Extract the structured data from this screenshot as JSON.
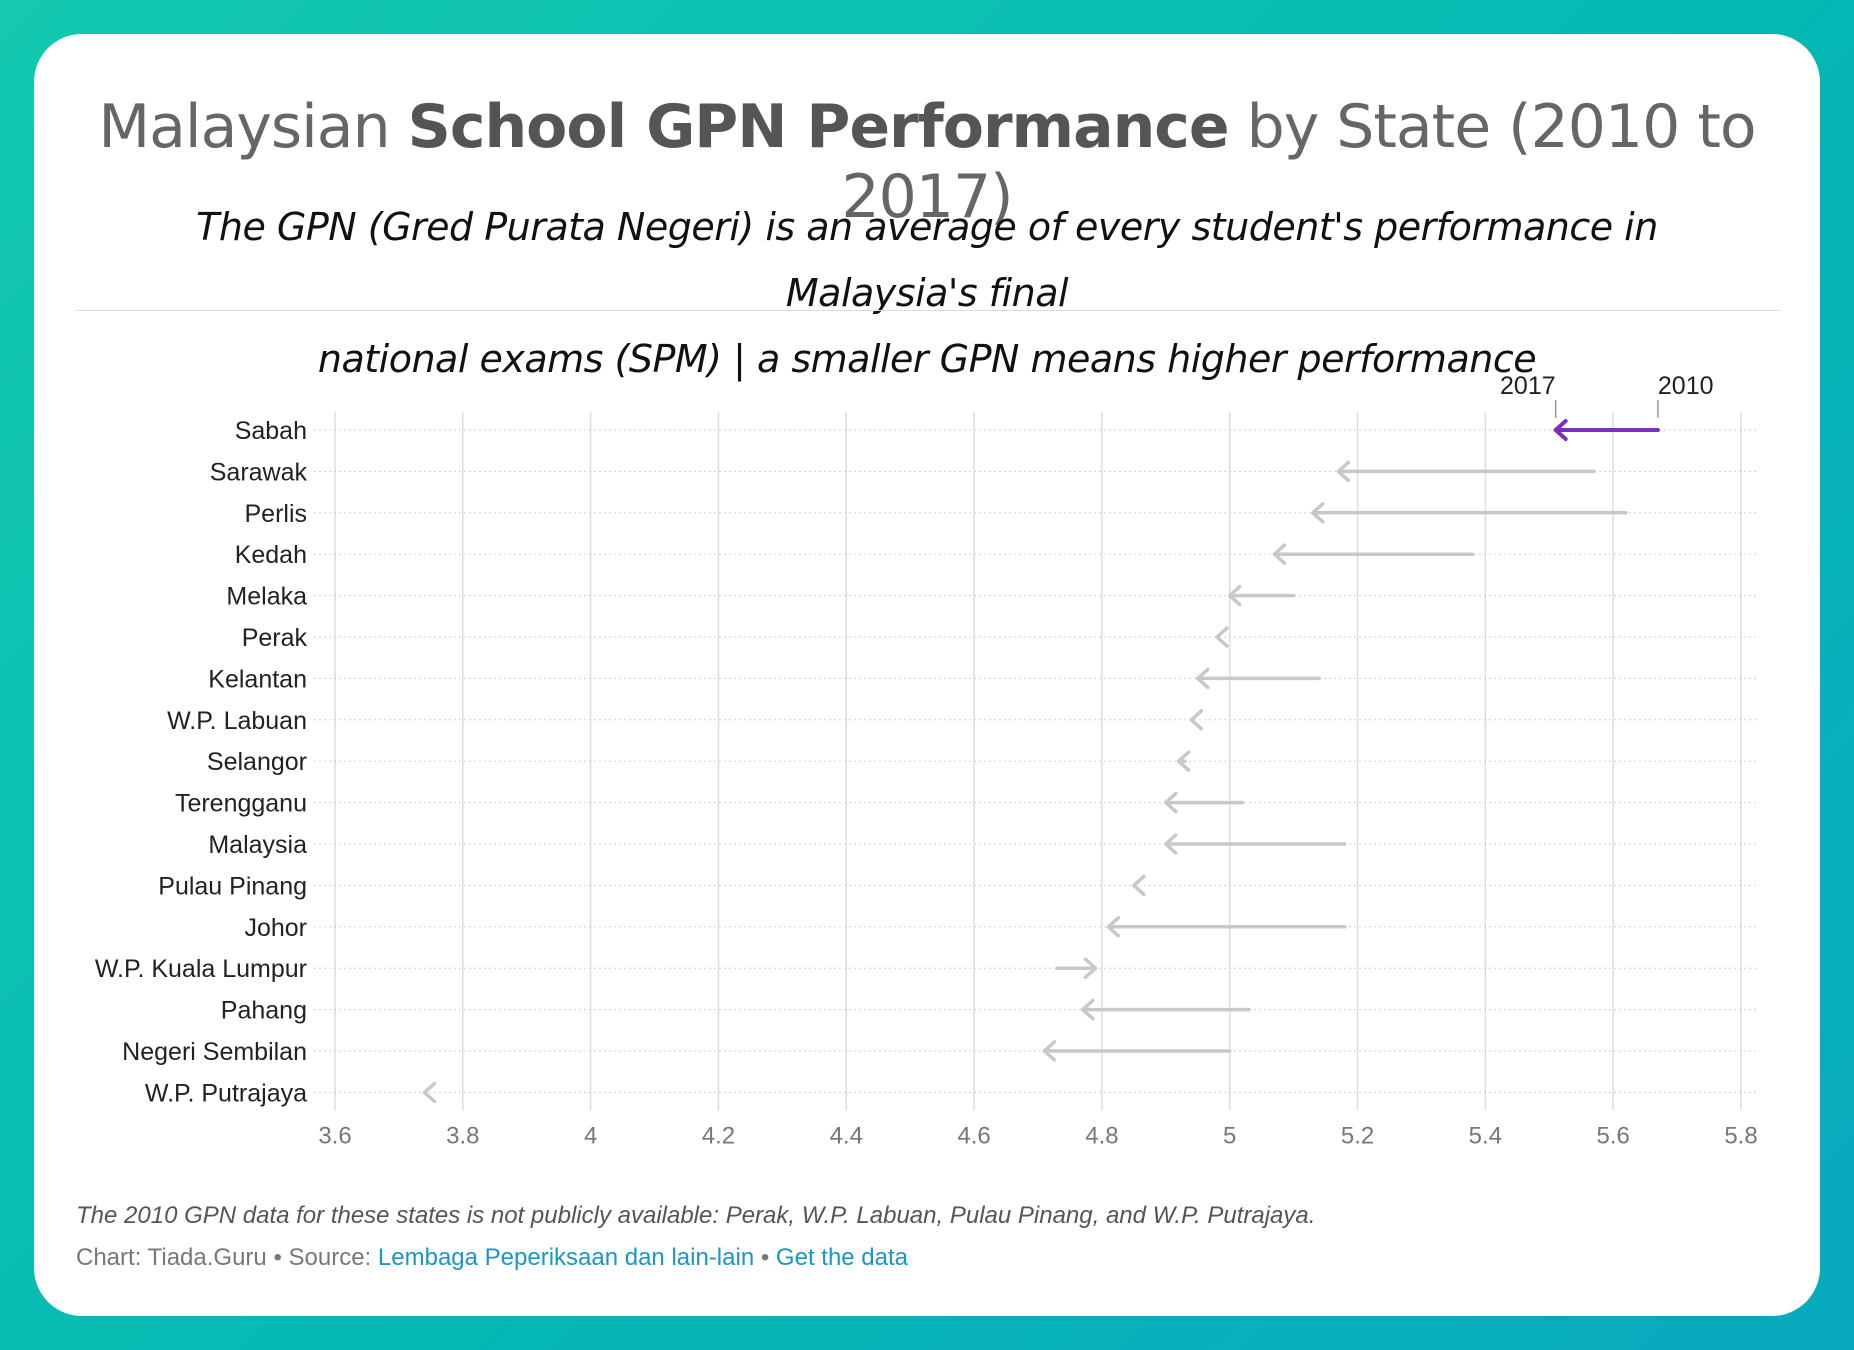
{
  "header": {
    "title_pre": "Malaysian ",
    "title_bold": "School GPN Performance",
    "title_post": " by State (2010 to 2017)",
    "subtitle_line1": "The GPN (Gred Purata Negeri) is an average of every student's performance in Malaysia's final",
    "subtitle_line2": "national exams (SPM) | a smaller GPN means higher performance"
  },
  "chart_data": {
    "type": "arrow",
    "x_ticks": [
      "3.6",
      "3.8",
      "4",
      "4.2",
      "4.4",
      "4.6",
      "4.8",
      "5",
      "5.2",
      "5.4",
      "5.6",
      "5.8"
    ],
    "xlim": [
      3.6,
      5.8
    ],
    "grid": true,
    "series_labels": {
      "start": "2010",
      "end": "2017"
    },
    "highlight_color": "#7b2fbe",
    "default_color": "#c8c8c8",
    "categories": [
      "Sabah",
      "Sarawak",
      "Perlis",
      "Kedah",
      "Melaka",
      "Perak",
      "Kelantan",
      "W.P. Labuan",
      "Selangor",
      "Terengganu",
      "Malaysia",
      "Pulau Pinang",
      "Johor",
      "W.P. Kuala Lumpur",
      "Pahang",
      "Negeri Sembilan",
      "W.P. Putrajaya"
    ],
    "rows": [
      {
        "name": "Sabah",
        "v2010": 5.67,
        "v2017": 5.51,
        "highlight": true
      },
      {
        "name": "Sarawak",
        "v2010": 5.57,
        "v2017": 5.17
      },
      {
        "name": "Perlis",
        "v2010": 5.62,
        "v2017": 5.13
      },
      {
        "name": "Kedah",
        "v2010": 5.38,
        "v2017": 5.07
      },
      {
        "name": "Melaka",
        "v2010": 5.1,
        "v2017": 5.0
      },
      {
        "name": "Perak",
        "v2010": null,
        "v2017": 4.98
      },
      {
        "name": "Kelantan",
        "v2010": 5.14,
        "v2017": 4.95
      },
      {
        "name": "W.P. Labuan",
        "v2010": null,
        "v2017": 4.94
      },
      {
        "name": "Selangor",
        "v2010": 4.93,
        "v2017": 4.92
      },
      {
        "name": "Terengganu",
        "v2010": 5.02,
        "v2017": 4.9
      },
      {
        "name": "Malaysia",
        "v2010": 5.18,
        "v2017": 4.9
      },
      {
        "name": "Pulau Pinang",
        "v2010": null,
        "v2017": 4.85
      },
      {
        "name": "Johor",
        "v2010": 5.18,
        "v2017": 4.81
      },
      {
        "name": "W.P. Kuala Lumpur",
        "v2010": 4.73,
        "v2017": 4.79
      },
      {
        "name": "Pahang",
        "v2010": 5.03,
        "v2017": 4.77
      },
      {
        "name": "Negeri Sembilan",
        "v2010": 5.0,
        "v2017": 4.71
      },
      {
        "name": "W.P. Putrajaya",
        "v2010": null,
        "v2017": 3.74
      }
    ]
  },
  "footer": {
    "note": "The 2010 GPN data for these states is not publicly available: Perak, W.P. Labuan, Pulau Pinang, and W.P. Putrajaya.",
    "credit": "Chart: Tiada.Guru",
    "source_label": "Source:",
    "source_link": "Lembaga Peperiksaan dan lain-lain",
    "data_link": "Get the data",
    "separator": "•"
  }
}
